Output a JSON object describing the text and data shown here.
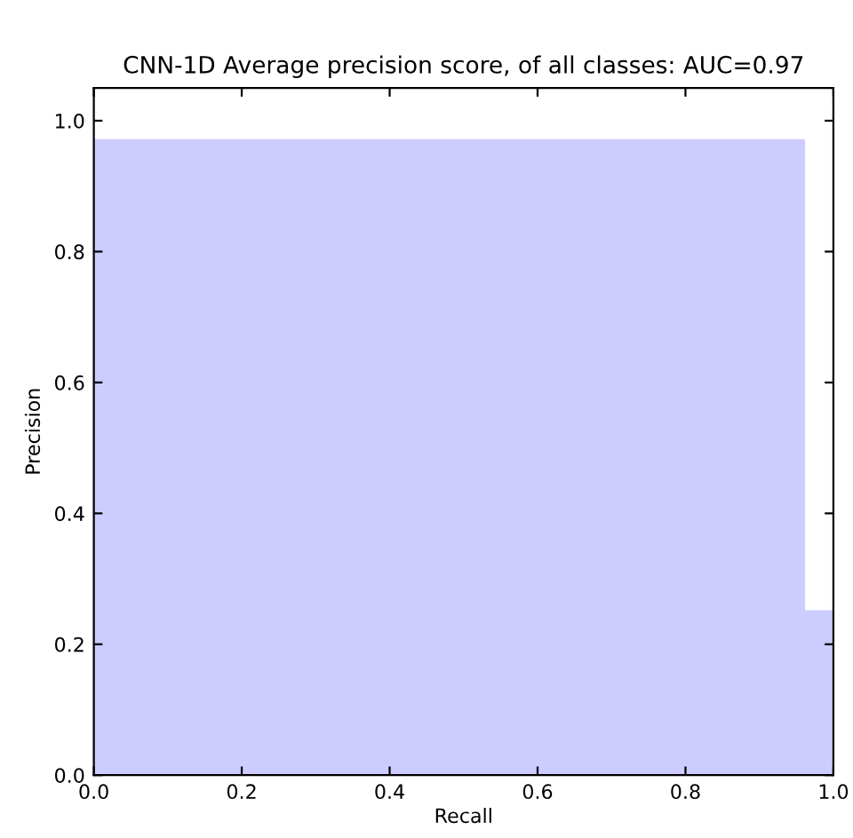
{
  "chart_data": {
    "type": "step",
    "title": "CNN-1D Average precision score, of all classes: AUC=0.97",
    "xlabel": "Recall",
    "ylabel": "Precision",
    "series": [
      {
        "color": "#ccccff",
        "x": [
          0,
          0.96,
          1.0
        ],
        "values": [
          0.97,
          0.25,
          0.25
        ]
      }
    ],
    "xlim": [
      0,
      1
    ],
    "ylim": [
      0,
      1.05
    ],
    "xticks": [
      {
        "value": 0,
        "label": "0.0"
      },
      0.2,
      0.4,
      0.6,
      0.8,
      {
        "value": 1,
        "label": "1.0"
      }
    ],
    "yticks": [
      {
        "value": 0,
        "label": "0.0"
      },
      0.2,
      0.4,
      0.6,
      0.8,
      {
        "value": 1,
        "label": "1.0"
      }
    ],
    "grid": false
  }
}
